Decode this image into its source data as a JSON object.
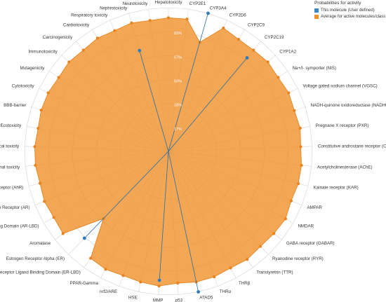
{
  "legend": {
    "title": "Probabilities for activity",
    "items": [
      {
        "label": "This molecule (User defined)",
        "color": "#3a87c5"
      },
      {
        "label": "Average for active molecules/class",
        "color": "#f0922e"
      }
    ]
  },
  "chart_data": {
    "type": "radar",
    "title": "",
    "rlim": [
      0,
      1
    ],
    "ticks": [
      {
        "value": 0.167,
        "label": "17%"
      },
      {
        "value": 0.333,
        "label": "33%"
      },
      {
        "value": 0.5,
        "label": "50%"
      },
      {
        "value": 0.667,
        "label": "67%"
      },
      {
        "value": 0.833,
        "label": "83%"
      },
      {
        "value": 1.0,
        "label": "100%"
      }
    ],
    "categories": [
      "Hepatotoxicity",
      "CYP2E1",
      "CYP3A4",
      "CYP2D6",
      "CYP2C9",
      "CYP2C19",
      "CYP1A2",
      "Na+/I- symporter (NIS)",
      "Voltage gated sodium channel (VGSC)",
      "NADH-quinone oxidoreductase (NADHOX)",
      "Pregnane X receptor (PXR)",
      "Constitutive androstane receptor (CAR)",
      "Acetylcholinesterase (AChE)",
      "Kainate receptor (KAR)",
      "AMPAR",
      "NMDAR",
      "GABA receptor (GABAR)",
      "Ryanodine receptor (RYR)",
      "Transtyretrin (TTR)",
      "THRβ",
      "THRα",
      "ATAD5",
      "p53",
      "MMP",
      "HSE",
      "nrf2/ARE",
      "PPAR-Gamma",
      "Estrogen Receptor Ligand Binding Domain (ER-LBD)",
      "Estrogen Receptor Alpha (ER)",
      "Aromatase",
      "Androgen Receptor Ligand Binding Domain (AR-LBD)",
      "Androgen Receptor (AR)",
      "Aryl hydrocarbon Receptor (AhR)",
      "Nutritional toxicity",
      "Clinical toxicity",
      "Ecotoxicity",
      "BBB-barrier",
      "Cytotoxicity",
      "Mutagenicity",
      "Immunotoxicity",
      "Carcinogenicity",
      "Cardiotoxicity",
      "Respiratory toxicity",
      "Nephrotoxicity",
      "Neurotoxicity"
    ],
    "series": [
      {
        "name": "This molecule (User defined)",
        "color": "#3a87c5",
        "values": [
          0.0,
          0.0,
          1.0,
          0.0,
          0.0,
          0.85,
          0.0,
          0.0,
          0.0,
          0.0,
          0.0,
          0.0,
          0.0,
          0.0,
          0.0,
          0.0,
          0.0,
          0.0,
          0.0,
          0.0,
          0.0,
          1.0,
          0.0,
          0.9,
          0.0,
          0.0,
          0.0,
          0.0,
          0.84,
          0.0,
          0.0,
          0.0,
          0.0,
          0.0,
          0.0,
          0.0,
          0.0,
          0.0,
          0.0,
          0.0,
          0.0,
          0.0,
          0.0,
          0.73,
          0.0
        ]
      },
      {
        "name": "Average for active molecules/class",
        "color": "#f0922e",
        "values": [
          0.93,
          0.93,
          0.79,
          0.94,
          0.92,
          0.92,
          0.93,
          0.92,
          0.93,
          0.92,
          0.93,
          0.92,
          0.93,
          0.93,
          0.92,
          0.94,
          0.93,
          0.92,
          0.93,
          0.92,
          0.93,
          0.93,
          0.92,
          0.94,
          0.93,
          0.92,
          0.93,
          0.92,
          0.65,
          0.93,
          0.92,
          0.93,
          0.92,
          0.93,
          0.93,
          0.92,
          0.93,
          0.93,
          0.92,
          0.93,
          0.92,
          0.93,
          0.92,
          0.93,
          0.92
        ]
      }
    ]
  }
}
